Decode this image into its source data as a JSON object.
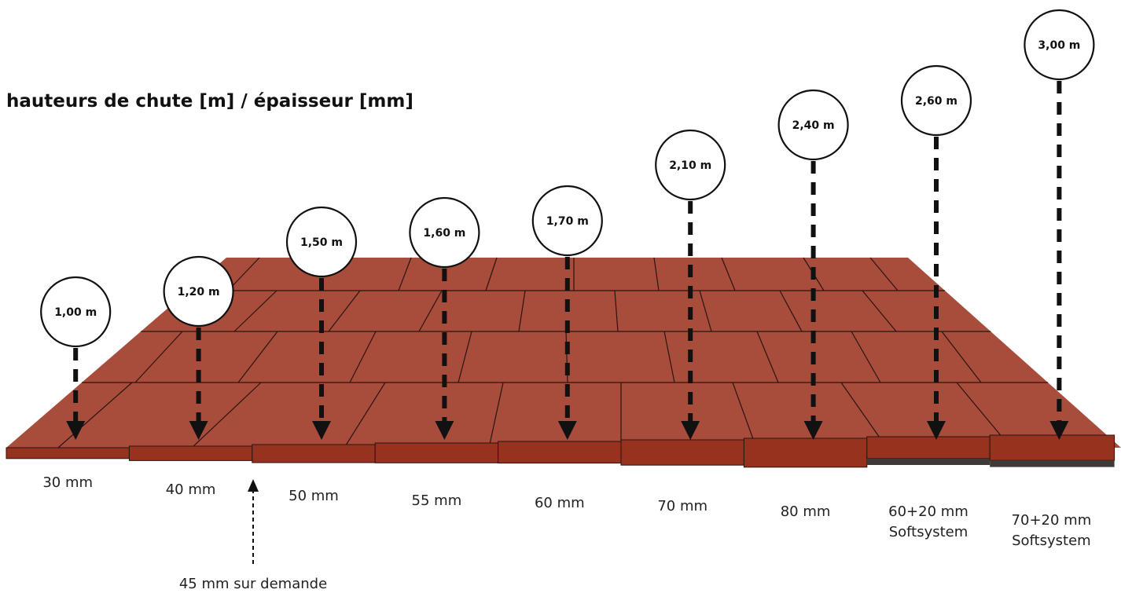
{
  "title": "hauteurs de chute [m] / épaisseur [mm]",
  "colors": {
    "tile_top": "#A84C3B",
    "tile_front": "#97321F",
    "soft_layer": "#3D3A38",
    "grout": "#2A1410",
    "arrow": "#111111"
  },
  "columns": [
    {
      "height": "1,00 m",
      "thickness": [
        "30 mm"
      ],
      "thickness_mm": 30
    },
    {
      "height": "1,20 m",
      "thickness": [
        "40 mm"
      ],
      "thickness_mm": 40
    },
    {
      "height": "1,50 m",
      "thickness": [
        "50 mm"
      ],
      "thickness_mm": 50
    },
    {
      "height": "1,60 m",
      "thickness": [
        "55 mm"
      ],
      "thickness_mm": 55
    },
    {
      "height": "1,70 m",
      "thickness": [
        "60 mm"
      ],
      "thickness_mm": 60
    },
    {
      "height": "2,10 m",
      "thickness": [
        "70 mm"
      ],
      "thickness_mm": 70
    },
    {
      "height": "2,40 m",
      "thickness": [
        "80 mm"
      ],
      "thickness_mm": 80
    },
    {
      "height": "2,60 m",
      "thickness": [
        "60+20 mm",
        "Softsystem"
      ],
      "thickness_mm": 60,
      "soft_mm": 20
    },
    {
      "height": "3,00 m",
      "thickness": [
        "70+20 mm",
        "Softsystem"
      ],
      "thickness_mm": 70,
      "soft_mm": 20
    }
  ],
  "note": "45 mm sur demande"
}
